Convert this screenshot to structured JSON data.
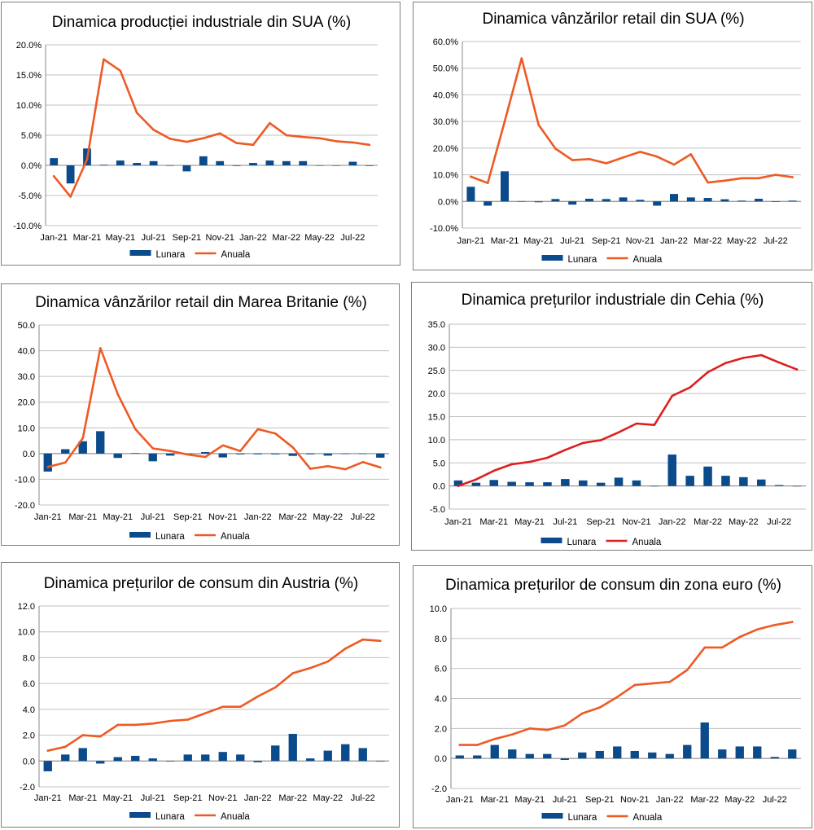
{
  "colors": {
    "monthly": "#0b4a8b",
    "annual": "#ee5a24",
    "annual_alt": "#dd1f1f"
  },
  "legend": {
    "monthly": "Lunara",
    "annual": "Anuala"
  },
  "chart_data": [
    {
      "type": "bar+line",
      "title": "Dinamica producției industriale din SUA (%)",
      "categories": [
        "Jan-21",
        "Feb-21",
        "Mar-21",
        "Apr-21",
        "May-21",
        "Jun-21",
        "Jul-21",
        "Aug-21",
        "Sep-21",
        "Oct-21",
        "Nov-21",
        "Dec-21",
        "Jan-22",
        "Feb-22",
        "Mar-22",
        "Apr-22",
        "May-22",
        "Jun-22",
        "Jul-22",
        "Aug-22"
      ],
      "xtick_labels": [
        "Jan-21",
        "Mar-21",
        "May-21",
        "Jul-21",
        "Sep-21",
        "Nov-21",
        "Jan-22",
        "Mar-22",
        "May-22",
        "Jul-22"
      ],
      "ylim": [
        -10,
        20
      ],
      "ystep": 5,
      "ytick_labels": [
        "-10.0%",
        "-5.0%",
        "0.0%",
        "5.0%",
        "10.0%",
        "15.0%",
        "20.0%"
      ],
      "series": [
        {
          "name": "Lunara",
          "type": "bar",
          "values": [
            1.2,
            -3.0,
            2.8,
            0.1,
            0.8,
            0.4,
            0.7,
            0.0,
            -1.0,
            1.5,
            0.7,
            -0.1,
            0.4,
            0.8,
            0.7,
            0.7,
            0.0,
            0.0,
            0.6,
            -0.1
          ]
        },
        {
          "name": "Anuala",
          "type": "line",
          "values": [
            -1.8,
            -5.2,
            1.0,
            17.6,
            15.7,
            8.7,
            5.9,
            4.4,
            3.9,
            4.5,
            5.3,
            3.7,
            3.4,
            7.0,
            5.0,
            4.7,
            4.5,
            4.0,
            3.8,
            3.4
          ]
        }
      ]
    },
    {
      "type": "bar+line",
      "title": "Dinamica vânzărilor retail din SUA (%)",
      "categories": [
        "Jan-21",
        "Feb-21",
        "Mar-21",
        "Apr-21",
        "May-21",
        "Jun-21",
        "Jul-21",
        "Aug-21",
        "Sep-21",
        "Oct-21",
        "Nov-21",
        "Dec-21",
        "Jan-22",
        "Feb-22",
        "Mar-22",
        "Apr-22",
        "May-22",
        "Jun-22",
        "Jul-22",
        "Aug-22"
      ],
      "xtick_labels": [
        "Jan-21",
        "Mar-21",
        "May-21",
        "Jul-21",
        "Sep-21",
        "Nov-21",
        "Jan-22",
        "Mar-22",
        "May-22",
        "Jul-22"
      ],
      "ylim": [
        -10,
        60
      ],
      "ystep": 10,
      "ytick_labels": [
        "-10.0%",
        "0.0%",
        "10.0%",
        "20.0%",
        "30.0%",
        "40.0%",
        "50.0%",
        "60.0%"
      ],
      "series": [
        {
          "name": "Lunara",
          "type": "bar",
          "values": [
            5.5,
            -1.6,
            11.3,
            0.1,
            -0.3,
            0.9,
            -1.2,
            1.0,
            0.9,
            1.5,
            0.6,
            -1.6,
            2.8,
            1.5,
            1.3,
            0.8,
            0.3,
            1.0,
            -0.1,
            0.3
          ]
        },
        {
          "name": "Anuala",
          "type": "line",
          "values": [
            9.3,
            6.9,
            30.0,
            53.7,
            28.8,
            19.8,
            15.5,
            15.9,
            14.3,
            16.5,
            18.6,
            16.8,
            13.8,
            17.7,
            7.1,
            7.8,
            8.7,
            8.7,
            10.0,
            9.1
          ]
        }
      ]
    },
    {
      "type": "bar+line",
      "title": "Dinamica vânzărilor retail din Marea Britanie (%)",
      "categories": [
        "Jan-21",
        "Feb-21",
        "Mar-21",
        "Apr-21",
        "May-21",
        "Jun-21",
        "Jul-21",
        "Aug-21",
        "Sep-21",
        "Oct-21",
        "Nov-21",
        "Dec-21",
        "Jan-22",
        "Feb-22",
        "Mar-22",
        "Apr-22",
        "May-22",
        "Jun-22",
        "Jul-22",
        "Aug-22"
      ],
      "xtick_labels": [
        "Jan-21",
        "Mar-21",
        "May-21",
        "Jul-21",
        "Sep-21",
        "Nov-21",
        "Jan-22",
        "Mar-22",
        "May-22",
        "Jul-22"
      ],
      "ylim": [
        -20,
        50
      ],
      "ystep": 10,
      "ytick_labels": [
        "-20.0",
        "-10.0",
        "0.0",
        "10.0",
        "20.0",
        "30.0",
        "40.0",
        "50.0"
      ],
      "series": [
        {
          "name": "Lunara",
          "type": "bar",
          "values": [
            -7.0,
            1.7,
            4.8,
            8.7,
            -1.7,
            0.2,
            -3.0,
            -0.8,
            -0.2,
            0.6,
            -1.5,
            -0.3,
            -0.3,
            -0.3,
            -0.9,
            -0.3,
            -0.8,
            -0.2,
            -0.2,
            -1.6
          ]
        },
        {
          "name": "Anuala",
          "type": "line",
          "values": [
            -5.2,
            -3.5,
            6.0,
            41.0,
            23.0,
            9.5,
            2.0,
            1.0,
            -0.4,
            -1.3,
            3.2,
            1.0,
            9.5,
            7.8,
            2.4,
            -5.9,
            -4.9,
            -6.1,
            -3.3,
            -5.4
          ]
        }
      ]
    },
    {
      "type": "bar+line",
      "title": "Dinamica prețurilor industriale din Cehia (%)",
      "categories": [
        "Jan-21",
        "Feb-21",
        "Mar-21",
        "Apr-21",
        "May-21",
        "Jun-21",
        "Jul-21",
        "Aug-21",
        "Sep-21",
        "Oct-21",
        "Nov-21",
        "Dec-21",
        "Jan-22",
        "Feb-22",
        "Mar-22",
        "Apr-22",
        "May-22",
        "Jun-22",
        "Jul-22",
        "Aug-22"
      ],
      "xtick_labels": [
        "Jan-21",
        "Mar-21",
        "May-21",
        "Jul-21",
        "Sep-21",
        "Nov-21",
        "Jan-22",
        "Mar-22",
        "May-22",
        "Jul-22"
      ],
      "ylim": [
        -5,
        35
      ],
      "ystep": 5,
      "ytick_labels": [
        "-5.0",
        "0.0",
        "5.0",
        "10.0",
        "15.0",
        "20.0",
        "25.0",
        "30.0",
        "35.0"
      ],
      "series": [
        {
          "name": "Lunara",
          "type": "bar",
          "values": [
            1.2,
            0.7,
            1.3,
            0.9,
            0.8,
            0.8,
            1.5,
            1.2,
            0.7,
            1.8,
            1.2,
            0.0,
            6.8,
            2.2,
            4.2,
            2.2,
            1.9,
            1.4,
            0.2,
            0.0
          ]
        },
        {
          "name": "Anuala",
          "type": "line",
          "values": [
            0.0,
            1.4,
            3.3,
            4.7,
            5.2,
            6.1,
            7.8,
            9.3,
            9.9,
            11.6,
            13.5,
            13.2,
            19.5,
            21.3,
            24.6,
            26.6,
            27.7,
            28.3,
            26.7,
            25.2
          ]
        }
      ]
    },
    {
      "type": "bar+line",
      "title": "Dinamica prețurilor de consum din Austria (%)",
      "categories": [
        "Jan-21",
        "Feb-21",
        "Mar-21",
        "Apr-21",
        "May-21",
        "Jun-21",
        "Jul-21",
        "Aug-21",
        "Sep-21",
        "Oct-21",
        "Nov-21",
        "Dec-21",
        "Jan-22",
        "Feb-22",
        "Mar-22",
        "Apr-22",
        "May-22",
        "Jun-22",
        "Jul-22",
        "Aug-22"
      ],
      "xtick_labels": [
        "Jan-21",
        "Mar-21",
        "May-21",
        "Jul-21",
        "Sep-21",
        "Nov-21",
        "Jan-22",
        "Mar-22",
        "May-22",
        "Jul-22"
      ],
      "ylim": [
        -2,
        12
      ],
      "ystep": 2,
      "ytick_labels": [
        "-2.0",
        "0.0",
        "2.0",
        "4.0",
        "6.0",
        "8.0",
        "10.0",
        "12.0"
      ],
      "series": [
        {
          "name": "Lunara",
          "type": "bar",
          "values": [
            -0.8,
            0.5,
            1.0,
            -0.2,
            0.3,
            0.4,
            0.2,
            0.0,
            0.5,
            0.5,
            0.7,
            0.5,
            -0.1,
            1.2,
            2.1,
            0.2,
            0.8,
            1.3,
            1.0,
            0.0
          ]
        },
        {
          "name": "Anuala",
          "type": "line",
          "values": [
            0.8,
            1.1,
            2.0,
            1.9,
            2.8,
            2.8,
            2.9,
            3.1,
            3.2,
            3.7,
            4.2,
            4.2,
            5.0,
            5.7,
            6.8,
            7.2,
            7.7,
            8.7,
            9.4,
            9.3
          ]
        }
      ]
    },
    {
      "type": "bar+line",
      "title": "Dinamica prețurilor de consum din zona euro (%)",
      "categories": [
        "Jan-21",
        "Feb-21",
        "Mar-21",
        "Apr-21",
        "May-21",
        "Jun-21",
        "Jul-21",
        "Aug-21",
        "Sep-21",
        "Oct-21",
        "Nov-21",
        "Dec-21",
        "Jan-22",
        "Feb-22",
        "Mar-22",
        "Apr-22",
        "May-22",
        "Jun-22",
        "Jul-22",
        "Aug-22"
      ],
      "xtick_labels": [
        "Jan-21",
        "Mar-21",
        "May-21",
        "Jul-21",
        "Sep-21",
        "Nov-21",
        "Jan-22",
        "Mar-22",
        "May-22",
        "Jul-22"
      ],
      "ylim": [
        -2,
        10
      ],
      "ystep": 2,
      "ytick_labels": [
        "-2.0",
        "0.0",
        "2.0",
        "4.0",
        "6.0",
        "8.0",
        "10.0"
      ],
      "series": [
        {
          "name": "Lunara",
          "type": "bar",
          "values": [
            0.2,
            0.2,
            0.9,
            0.6,
            0.3,
            0.3,
            -0.1,
            0.4,
            0.5,
            0.8,
            0.5,
            0.4,
            0.3,
            0.9,
            2.4,
            0.6,
            0.8,
            0.8,
            0.1,
            0.6
          ]
        },
        {
          "name": "Anuala",
          "type": "line",
          "values": [
            0.9,
            0.9,
            1.3,
            1.6,
            2.0,
            1.9,
            2.2,
            3.0,
            3.4,
            4.1,
            4.9,
            5.0,
            5.1,
            5.9,
            7.4,
            7.4,
            8.1,
            8.6,
            8.9,
            9.1
          ]
        }
      ]
    }
  ]
}
